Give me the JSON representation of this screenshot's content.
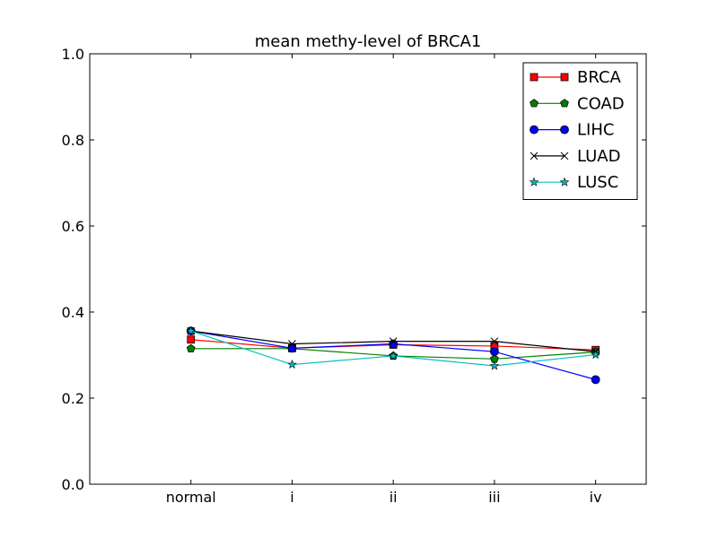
{
  "chart_data": {
    "type": "line",
    "title": "mean methy-level of BRCA1",
    "xlabel": "",
    "ylabel": "",
    "categories": [
      "normal",
      "i",
      "ii",
      "iii",
      "iv"
    ],
    "ylim": [
      0.0,
      1.0
    ],
    "yticks": [
      "0.0",
      "0.2",
      "0.4",
      "0.6",
      "0.8",
      "1.0"
    ],
    "grid": false,
    "legend_position": "top-right",
    "series": [
      {
        "name": "BRCA",
        "color": "#ff0000",
        "marker": "square",
        "values": [
          0.336,
          0.316,
          0.324,
          0.321,
          0.312
        ]
      },
      {
        "name": "COAD",
        "color": "#008000",
        "marker": "pentagon",
        "values": [
          0.315,
          0.315,
          0.298,
          0.291,
          0.307
        ]
      },
      {
        "name": "LIHC",
        "color": "#0000ff",
        "marker": "circle",
        "values": [
          0.356,
          0.316,
          0.326,
          0.308,
          0.243
        ]
      },
      {
        "name": "LUAD",
        "color": "#000000",
        "marker": "x",
        "values": [
          0.356,
          0.326,
          0.332,
          0.332,
          0.308
        ]
      },
      {
        "name": "LUSC",
        "color": "#00bfbf",
        "marker": "star",
        "values": [
          0.356,
          0.278,
          0.298,
          0.275,
          0.301
        ]
      }
    ]
  }
}
